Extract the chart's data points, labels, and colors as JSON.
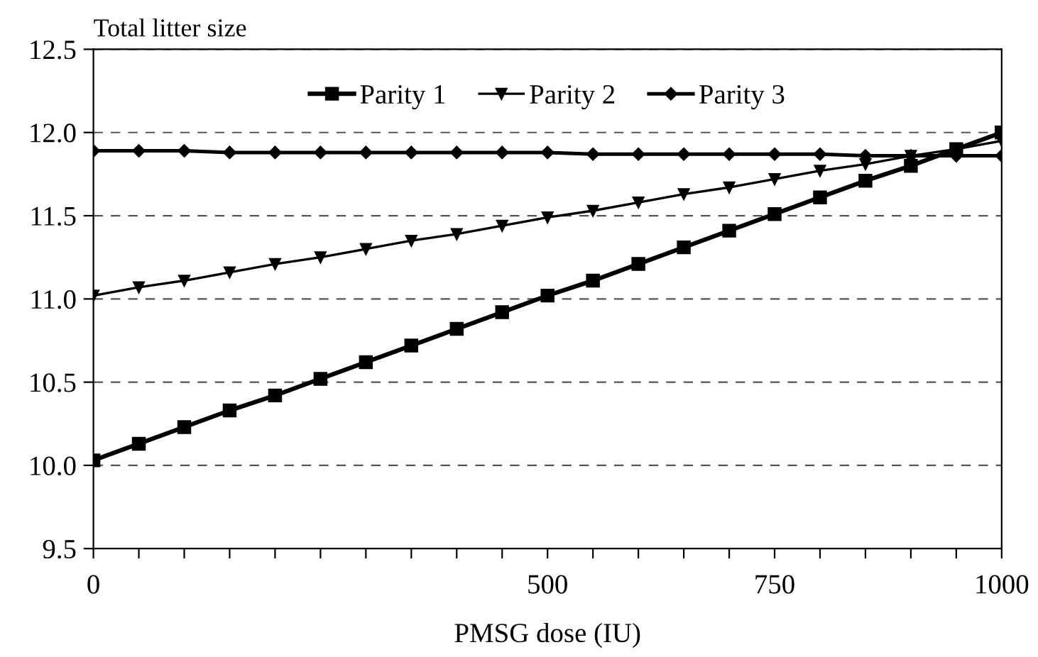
{
  "chart_data": {
    "type": "line",
    "ylabel": "Total litter size",
    "xlabel": "PMSG dose (IU)",
    "x": [
      0,
      50,
      100,
      150,
      200,
      250,
      300,
      350,
      400,
      450,
      500,
      550,
      600,
      650,
      700,
      750,
      800,
      850,
      900,
      950,
      1000
    ],
    "series": [
      {
        "name": "Parity 1",
        "color": "#000000",
        "marker": "square",
        "values": [
          10.03,
          10.13,
          10.23,
          10.33,
          10.42,
          10.52,
          10.62,
          10.72,
          10.82,
          10.92,
          11.02,
          11.11,
          11.21,
          11.31,
          11.41,
          11.51,
          11.61,
          11.71,
          11.8,
          11.9,
          12.0
        ]
      },
      {
        "name": "Parity 2",
        "color": "#000000",
        "marker": "triangle",
        "values": [
          11.02,
          11.07,
          11.11,
          11.16,
          11.21,
          11.25,
          11.3,
          11.35,
          11.39,
          11.44,
          11.49,
          11.53,
          11.58,
          11.63,
          11.67,
          11.72,
          11.77,
          11.81,
          11.86,
          11.9,
          11.95
        ]
      },
      {
        "name": "Parity 3",
        "color": "#000000",
        "marker": "diamond",
        "values": [
          11.89,
          11.89,
          11.89,
          11.88,
          11.88,
          11.88,
          11.88,
          11.88,
          11.88,
          11.88,
          11.88,
          11.87,
          11.87,
          11.87,
          11.87,
          11.87,
          11.87,
          11.86,
          11.86,
          11.86,
          11.86
        ]
      }
    ],
    "xlim": [
      0,
      1000
    ],
    "xticks": [
      0,
      {
        "value": 50,
        "label": null
      },
      {
        "value": 100,
        "label": null
      },
      {
        "value": 150,
        "label": null
      },
      {
        "value": 200,
        "label": null
      },
      {
        "value": 250,
        "label": null
      },
      {
        "value": 300,
        "label": null
      },
      {
        "value": 350,
        "label": null
      },
      {
        "value": 400,
        "label": null
      },
      {
        "value": 450,
        "label": null
      },
      500,
      {
        "value": 550,
        "label": null
      },
      {
        "value": 600,
        "label": null
      },
      {
        "value": 650,
        "label": null
      },
      {
        "value": 700,
        "label": null
      },
      750,
      {
        "value": 800,
        "label": null
      },
      {
        "value": 850,
        "label": null
      },
      {
        "value": 900,
        "label": null
      },
      {
        "value": 950,
        "label": null
      },
      1000
    ],
    "ylim": [
      9.5,
      12.5
    ],
    "yticks": [
      {
        "value": 9.5,
        "label": "9.5"
      },
      {
        "value": 10,
        "label": "10.0"
      },
      {
        "value": 10.5,
        "label": "10.5"
      },
      {
        "value": 11,
        "label": "11.0"
      },
      {
        "value": 11.5,
        "label": "11.5"
      },
      {
        "value": 12,
        "label": "12.0"
      },
      {
        "value": 12.5,
        "label": "12.5"
      }
    ],
    "grid": "y",
    "legend": "top"
  }
}
